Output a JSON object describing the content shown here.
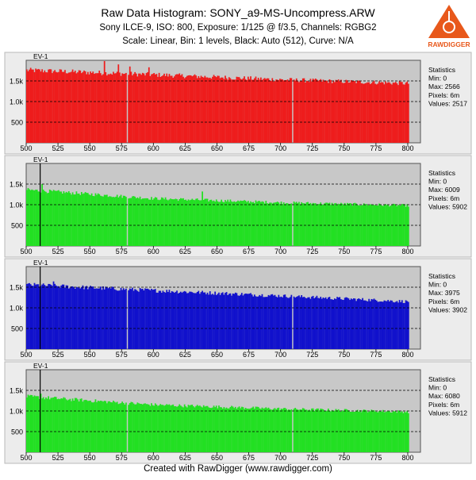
{
  "header": {
    "title": "Raw Data Histogram: SONY_a9-MS-Uncompress.ARW",
    "subtitle": "Sony ILCE-9, ISO: 800, Exposure: 1/125 @ f/3.5, Channels: RGBG2",
    "subtitle2": "Scale: Linear, Bin: 1 levels, Black: Auto (512), Curve: N/A"
  },
  "logo": {
    "text": "RAWDIGGER",
    "color": "#e8581b"
  },
  "footer": {
    "text": "Created with RawDigger (www.rawdigger.com)"
  },
  "chart_data": [
    {
      "type": "bar",
      "channel": "R",
      "color": "#ee1c1c",
      "ev_label": "EV-1",
      "ev_marker": null,
      "x_range": [
        500,
        800
      ],
      "xlim": [
        500,
        810
      ],
      "ylim": [
        0,
        2000
      ],
      "x_ticks": [
        500,
        525,
        550,
        575,
        600,
        625,
        650,
        675,
        700,
        725,
        750,
        775,
        800
      ],
      "y_ticks": [
        {
          "value": 500,
          "label": "500"
        },
        {
          "value": 1000,
          "label": "1.0k"
        },
        {
          "value": 1500,
          "label": "1.5k"
        }
      ],
      "trend": [
        [
          500,
          1760
        ],
        [
          600,
          1650
        ],
        [
          700,
          1530
        ],
        [
          800,
          1440
        ]
      ],
      "gaps": [
        579,
        709
      ],
      "spikes": [
        [
          561,
          1980
        ],
        [
          572,
          1900
        ],
        [
          581,
          1850
        ],
        [
          596,
          1830
        ]
      ],
      "stats": {
        "title": "Statistics",
        "min": "Min: 0",
        "max": "Max: 2566",
        "pixels": "Pixels: 6m",
        "values": "Values: 2517"
      }
    },
    {
      "type": "bar",
      "channel": "G",
      "color": "#22e022",
      "ev_label": "EV-1",
      "ev_marker": 511,
      "x_range": [
        500,
        800
      ],
      "xlim": [
        500,
        810
      ],
      "ylim": [
        0,
        2000
      ],
      "x_ticks": [
        500,
        525,
        550,
        575,
        600,
        625,
        650,
        675,
        700,
        725,
        750,
        775,
        800
      ],
      "y_ticks": [
        {
          "value": 500,
          "label": "500"
        },
        {
          "value": 1000,
          "label": "1.0k"
        },
        {
          "value": 1500,
          "label": "1.5k"
        }
      ],
      "trend": [
        [
          500,
          1360
        ],
        [
          600,
          1150
        ],
        [
          700,
          1050
        ],
        [
          800,
          980
        ]
      ],
      "gaps": [
        579,
        709
      ],
      "spikes": [
        [
          512,
          1500
        ],
        [
          638,
          1320
        ]
      ],
      "stats": {
        "title": "Statistics",
        "min": "Min: 0",
        "max": "Max: 6009",
        "pixels": "Pixels: 6m",
        "values": "Values: 5902"
      }
    },
    {
      "type": "bar",
      "channel": "B",
      "color": "#1111cc",
      "ev_label": "EV-1",
      "ev_marker": 511,
      "x_range": [
        500,
        800
      ],
      "xlim": [
        500,
        810
      ],
      "ylim": [
        0,
        2000
      ],
      "x_ticks": [
        500,
        525,
        550,
        575,
        600,
        625,
        650,
        675,
        700,
        725,
        750,
        775,
        800
      ],
      "y_ticks": [
        {
          "value": 500,
          "label": "500"
        },
        {
          "value": 1000,
          "label": "1.0k"
        },
        {
          "value": 1500,
          "label": "1.5k"
        }
      ],
      "trend": [
        [
          500,
          1560
        ],
        [
          600,
          1420
        ],
        [
          700,
          1290
        ],
        [
          800,
          1150
        ]
      ],
      "gaps": [
        579,
        709
      ],
      "spikes": [
        [
          521,
          1640
        ]
      ],
      "stats": {
        "title": "Statistics",
        "min": "Min: 0",
        "max": "Max: 3975",
        "pixels": "Pixels: 6m",
        "values": "Values: 3902"
      }
    },
    {
      "type": "bar",
      "channel": "G2",
      "color": "#22e022",
      "ev_label": "EV-1",
      "ev_marker": 511,
      "x_range": [
        500,
        800
      ],
      "xlim": [
        500,
        810
      ],
      "ylim": [
        0,
        2000
      ],
      "x_ticks": [
        500,
        525,
        550,
        575,
        600,
        625,
        650,
        675,
        700,
        725,
        750,
        775,
        800
      ],
      "y_ticks": [
        {
          "value": 500,
          "label": "500"
        },
        {
          "value": 1000,
          "label": "1.0k"
        },
        {
          "value": 1500,
          "label": "1.5k"
        }
      ],
      "trend": [
        [
          500,
          1350
        ],
        [
          600,
          1150
        ],
        [
          700,
          1050
        ],
        [
          800,
          980
        ]
      ],
      "gaps": [
        579,
        709
      ],
      "spikes": [
        [
          511,
          1420
        ]
      ],
      "stats": {
        "title": "Statistics",
        "min": "Min: 0",
        "max": "Max: 6080",
        "pixels": "Pixels: 6m",
        "values": "Values: 5912"
      }
    }
  ]
}
